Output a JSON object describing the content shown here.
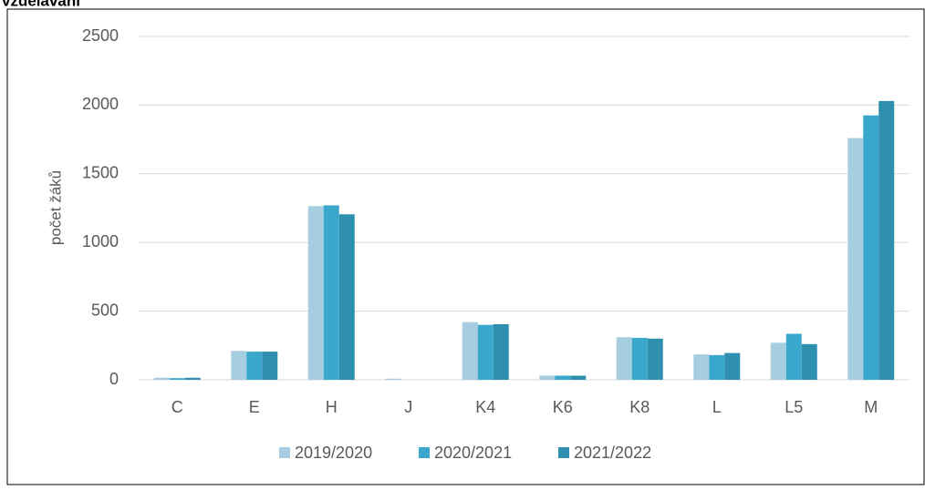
{
  "chart_data": {
    "type": "bar",
    "title": "vzdělávání",
    "ylabel": "počet žáků",
    "categories": [
      "C",
      "E",
      "H",
      "J",
      "K4",
      "K6",
      "K8",
      "L",
      "L5",
      "M"
    ],
    "series": [
      {
        "name": "2019/2020",
        "color": "#a6cee0",
        "values": [
          15,
          210,
          1265,
          8,
          420,
          30,
          310,
          185,
          270,
          1760
        ]
      },
      {
        "name": "2020/2021",
        "color": "#3aa8cc",
        "values": [
          12,
          205,
          1270,
          0,
          400,
          30,
          305,
          180,
          335,
          1925
        ]
      },
      {
        "name": "2021/2022",
        "color": "#2e8faf",
        "values": [
          15,
          205,
          1205,
          0,
          405,
          30,
          300,
          195,
          260,
          2030
        ]
      }
    ],
    "ylim": [
      0,
      2500
    ],
    "yticks": [
      0,
      500,
      1000,
      1500,
      2000,
      2500
    ],
    "grid": true,
    "legend": "bottom"
  }
}
